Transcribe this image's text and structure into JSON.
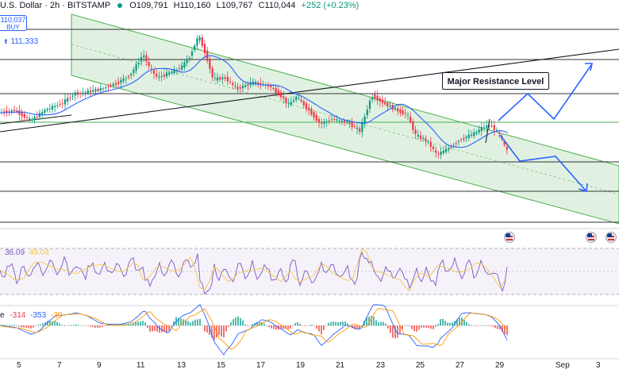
{
  "header": {
    "symbol": "U.S. Dollar · 2h · BITSTAMP",
    "open": "O109,791",
    "high": "H110,160",
    "low": "L109,767",
    "close": "C110,044",
    "change": "+252 (+0.23%)",
    "up_color": "#089981"
  },
  "buy_badge": {
    "price": "110,037",
    "label": "BUY"
  },
  "ref_price": "111,333",
  "annotation": "Major Resistance Level",
  "rsi": {
    "value1": "36.09",
    "value2": "49.04"
  },
  "macd": {
    "label": "e",
    "v1": "-314",
    "v2": "-353",
    "v3": "-39"
  },
  "x_axis": [
    "5",
    "7",
    "9",
    "11",
    "13",
    "15",
    "17",
    "19",
    "21",
    "23",
    "25",
    "27",
    "29",
    "Sep",
    "3"
  ],
  "colors": {
    "bull": "#089981",
    "bear": "#f23645",
    "channel": "#c8e6c9",
    "channel_line": "#4caf50",
    "ma": "#2962ff",
    "rsi": "#7e57c2",
    "rsi_ma": "#f7c948",
    "macd": "#2962ff",
    "signal": "#ff9800",
    "arrow": "#2962ff"
  },
  "icons": [
    "economic-event-flag-icon"
  ]
}
